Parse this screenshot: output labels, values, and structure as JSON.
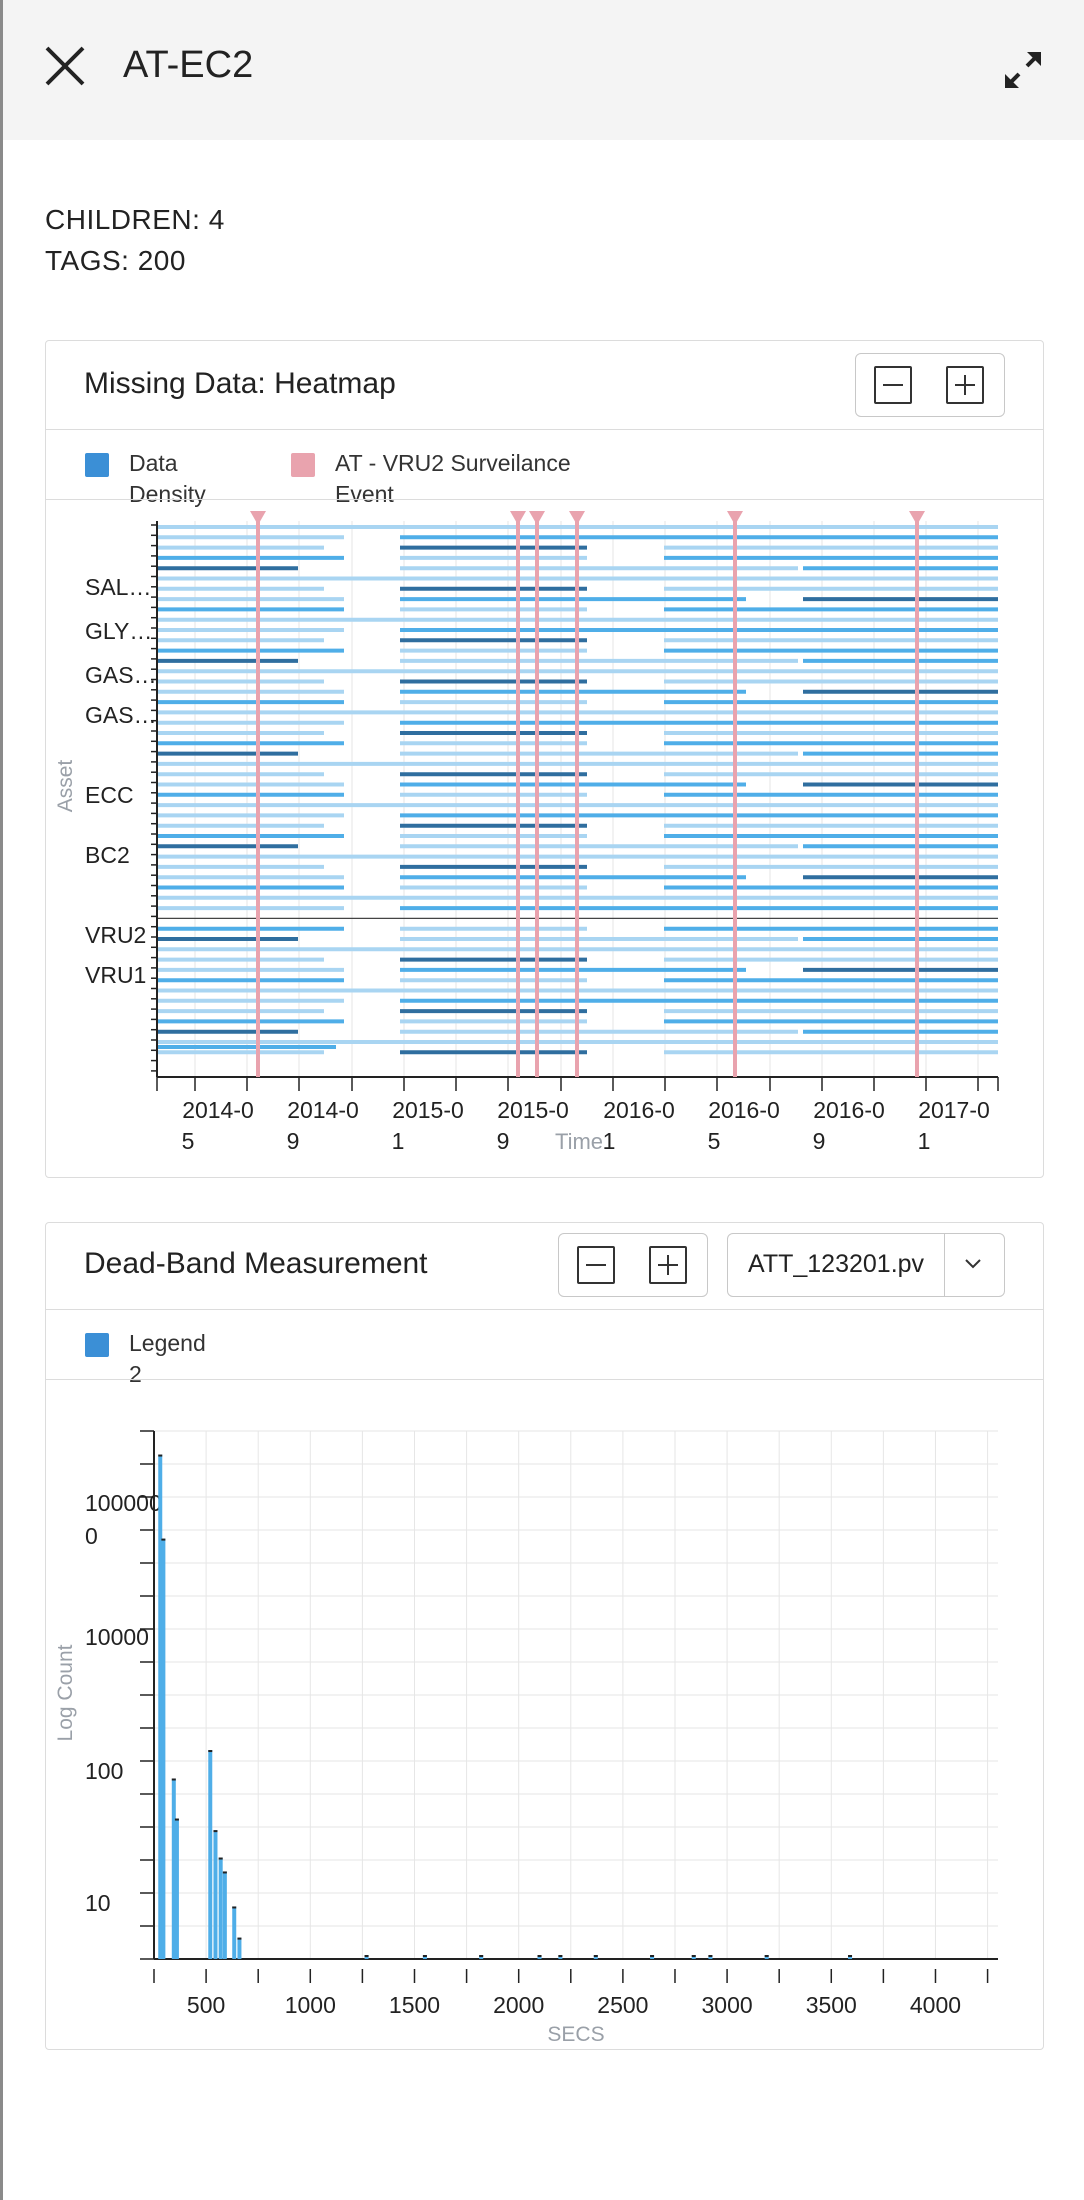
{
  "header": {
    "title": "AT-EC2"
  },
  "info": {
    "children": "CHILDREN:  4",
    "tags": "TAGS:  200"
  },
  "heatmap": {
    "title": "Missing Data: Heatmap",
    "legend": [
      {
        "label_line1": "Data",
        "label_line2": "Density",
        "color": "#3b8fd6"
      },
      {
        "label_line1": "AT - VRU2 Surveilance",
        "label_line2": "Event",
        "color": "#e9a3ae"
      }
    ],
    "ylabel": "Asset",
    "xlabel": "Time",
    "asset_labels": [
      "SAL…",
      "GLY…",
      "GAS…",
      "GAS…",
      "ECC",
      "BC2",
      "VRU2",
      "VRU1"
    ],
    "x_ticks": [
      {
        "l1": "2014-0",
        "l2": "5"
      },
      {
        "l1": "2014-0",
        "l2": "9"
      },
      {
        "l1": "2015-0",
        "l2": "1"
      },
      {
        "l1": "2015-0",
        "l2": "9"
      },
      {
        "l1": "2016-0",
        "l2": "1"
      },
      {
        "l1": "2016-0",
        "l2": "5"
      },
      {
        "l1": "2016-0",
        "l2": "9"
      },
      {
        "l1": "2017-0",
        "l2": "1"
      }
    ]
  },
  "deadband": {
    "title": "Dead-Band Measurement",
    "select_value": "ATT_123201.pv",
    "legend_line1": "Legend",
    "legend_line2": "2",
    "legend_color": "#3b8fd6"
  },
  "chart_data": [
    {
      "type": "heatmap",
      "title": "Missing Data: Heatmap",
      "xlabel": "Time",
      "ylabel": "Asset",
      "y_categories": [
        "SAL…",
        "GLY…",
        "GAS…",
        "GAS…",
        "ECC",
        "BC2",
        "VRU2",
        "VRU1"
      ],
      "x_tick_labels": [
        "2014-05",
        "2014-09",
        "2015-01",
        "2015-09",
        "2016-01",
        "2016-05",
        "2016-09",
        "2017-01"
      ],
      "event_series": "AT - VRU2 Surveilance Event",
      "event_dates": [
        "2014-07",
        "2015-09",
        "2015-10",
        "2015-12",
        "2016-05",
        "2016-12"
      ]
    },
    {
      "type": "bar",
      "title": "Dead-Band Measurement",
      "xlabel": "SECS",
      "ylabel": "Log Count",
      "y_scale": "log",
      "x_ticks": [
        500,
        1000,
        1500,
        2000,
        2500,
        3000,
        3500,
        4000
      ],
      "y_tick_labels": [
        "10",
        "100",
        "10000",
        "1000000"
      ],
      "xlim": [
        250,
        4300
      ],
      "series": [
        {
          "name": "Legend 2",
          "x": [
            280,
            295,
            345,
            360,
            520,
            545,
            570,
            590,
            635,
            660,
            1270,
            1550,
            1820,
            2100,
            2200,
            2370,
            2640,
            2840,
            2920,
            3190,
            3590
          ],
          "values": [
            30000,
            7000,
            110,
            55,
            180,
            45,
            28,
            22,
            12,
            7,
            2,
            2,
            2,
            2,
            2,
            2,
            2,
            2,
            2,
            2,
            2
          ]
        }
      ]
    }
  ]
}
